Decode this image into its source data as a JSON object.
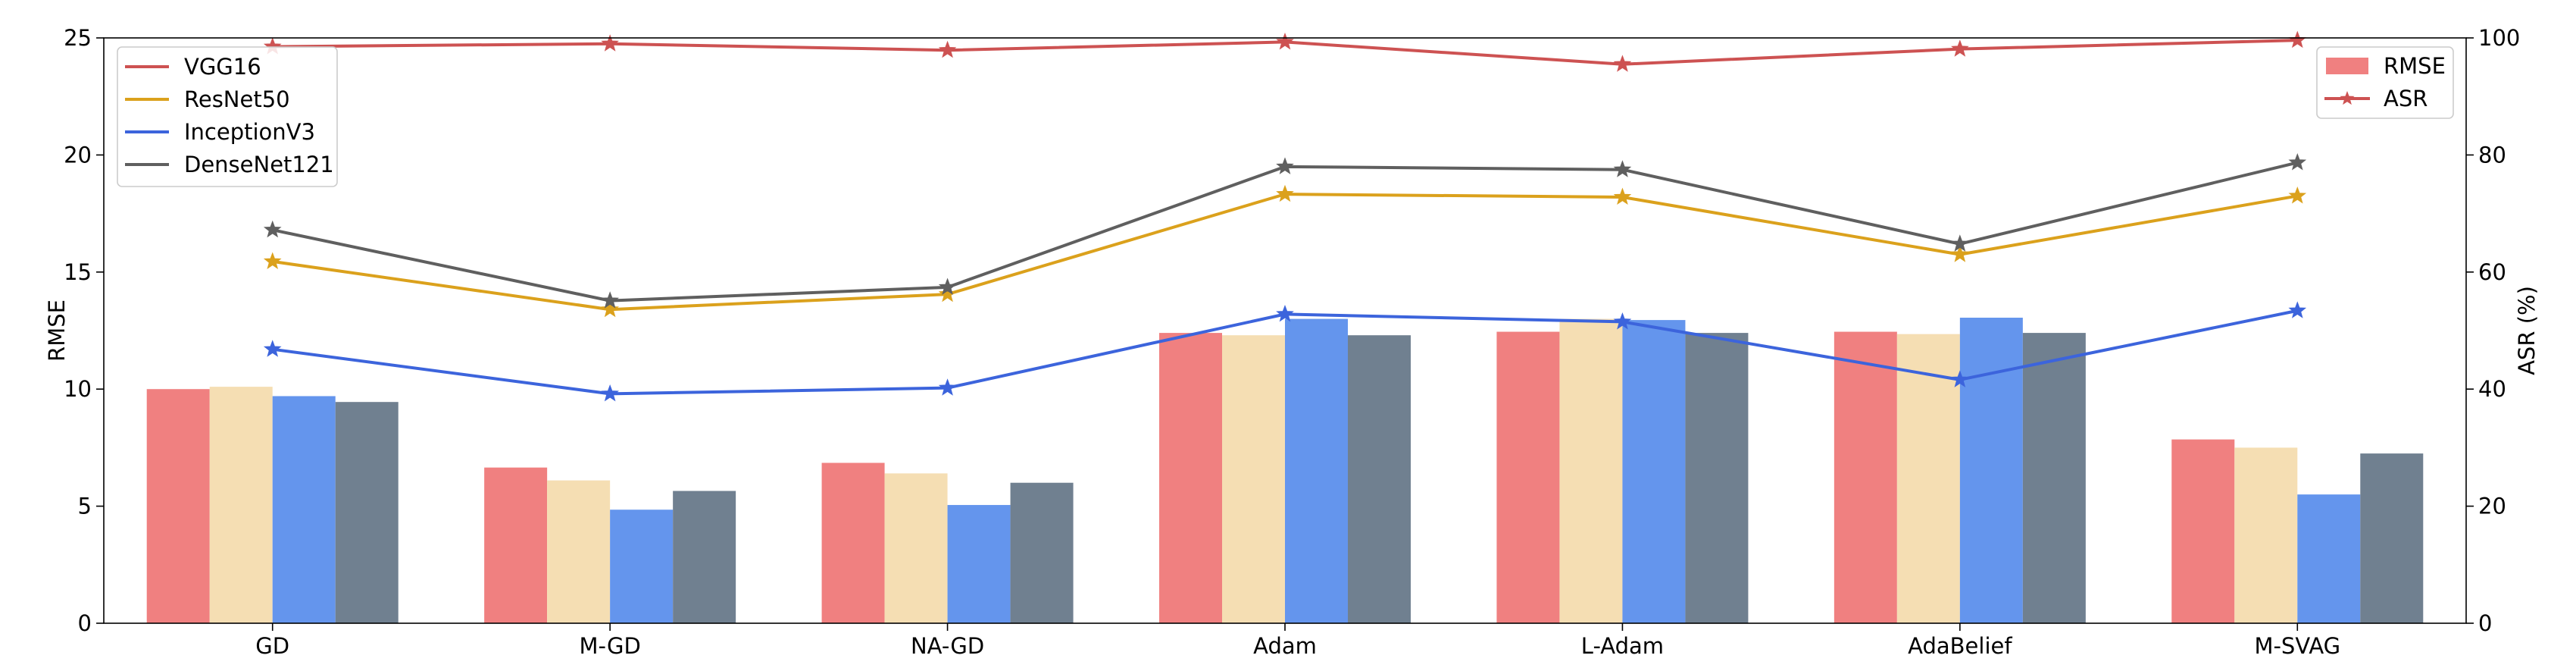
{
  "chart_data": {
    "type": "bar",
    "categories": [
      "GD",
      "M-GD",
      "NA-GD",
      "Adam",
      "L-Adam",
      "AdaBelief",
      "M-SVAG"
    ],
    "title": "",
    "xlabel": "",
    "ylabel": "RMSE",
    "ylabel_right": "ASR (%)",
    "ylim": [
      0,
      25
    ],
    "ylim_right": [
      0,
      100
    ],
    "yticks": [
      0,
      5,
      10,
      15,
      20,
      25
    ],
    "yticks_right": [
      0,
      20,
      40,
      60,
      80,
      100
    ],
    "grid": false,
    "bar_series": [
      {
        "model": "VGG16",
        "values": [
          10.0,
          6.65,
          6.85,
          12.4,
          12.45,
          12.45,
          7.85
        ],
        "color": "#f08080"
      },
      {
        "model": "ResNet50",
        "values": [
          10.1,
          6.1,
          6.4,
          12.3,
          13.0,
          12.35,
          7.5
        ],
        "color": "#f5deb3"
      },
      {
        "model": "InceptionV3",
        "values": [
          9.7,
          4.85,
          5.05,
          13.0,
          12.95,
          13.05,
          5.5
        ],
        "color": "#6495ed"
      },
      {
        "model": "DenseNet121",
        "values": [
          9.45,
          5.65,
          6.0,
          12.3,
          12.4,
          12.4,
          7.25
        ],
        "color": "#708090"
      }
    ],
    "line_series": [
      {
        "name": "VGG16",
        "values": [
          98.5,
          99.0,
          97.9,
          99.3,
          95.5,
          98.1,
          99.6
        ],
        "color": "#cd5252"
      },
      {
        "name": "ResNet50",
        "values": [
          61.8,
          53.6,
          56.2,
          73.3,
          72.8,
          63.0,
          73.0
        ],
        "color": "#dba11c"
      },
      {
        "name": "InceptionV3",
        "values": [
          46.8,
          39.2,
          40.2,
          52.8,
          51.5,
          41.6,
          53.4
        ],
        "color": "#3c64dc"
      },
      {
        "name": "DenseNet121",
        "values": [
          67.2,
          55.1,
          57.4,
          78.0,
          77.5,
          64.8,
          78.7
        ],
        "color": "#5f5f5f"
      }
    ],
    "legend_left": {
      "placement": "top-left",
      "entries": [
        "VGG16",
        "ResNet50",
        "InceptionV3",
        "DenseNet121"
      ]
    },
    "legend_right": {
      "placement": "top-right",
      "entries": [
        {
          "label": "RMSE",
          "kind": "bar",
          "color": "#f08080"
        },
        {
          "label": "ASR",
          "kind": "line-star",
          "color": "#cd5252"
        }
      ]
    }
  }
}
